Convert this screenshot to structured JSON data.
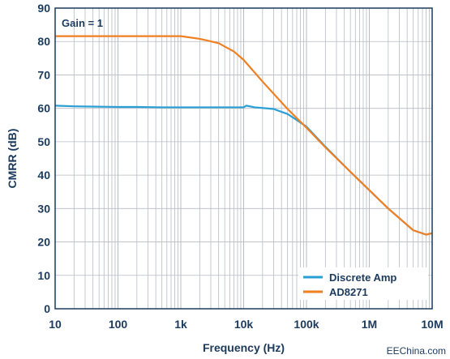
{
  "chart_data": {
    "type": "line",
    "xscale": "log",
    "xlabel": "Frequency (Hz)",
    "ylabel": "CMRR (dB)",
    "xlim": [
      10,
      10000000
    ],
    "ylim": [
      0,
      90
    ],
    "yticks": [
      0,
      10,
      20,
      30,
      40,
      50,
      60,
      70,
      80,
      90
    ],
    "xticks": [
      {
        "value": 10,
        "label": "10"
      },
      {
        "value": 100,
        "label": "100"
      },
      {
        "value": 1000,
        "label": "1k"
      },
      {
        "value": 10000,
        "label": "10k"
      },
      {
        "value": 100000,
        "label": "100k"
      },
      {
        "value": 1000000,
        "label": "1M"
      },
      {
        "value": 10000000,
        "label": "10M"
      }
    ],
    "grid": true,
    "legend_position": "bottom-right",
    "annotation": "Gain = 1",
    "series": [
      {
        "name": "Discrete Amp",
        "color": "#2a9fd6",
        "x": [
          10,
          20,
          50,
          100,
          200,
          500,
          1000,
          2000,
          5000,
          10000,
          11000,
          15000,
          20000,
          30000,
          50000,
          70000,
          100000,
          200000,
          500000,
          1000000,
          2000000,
          5000000,
          8000000,
          10000000
        ],
        "y": [
          60.8,
          60.6,
          60.5,
          60.4,
          60.4,
          60.3,
          60.3,
          60.3,
          60.3,
          60.3,
          60.8,
          60.3,
          60.1,
          59.8,
          58.3,
          56.5,
          54.5,
          48.5,
          41,
          35.5,
          30,
          23.5,
          22.2,
          22.6
        ]
      },
      {
        "name": "AD8271",
        "color": "#f07f22",
        "x": [
          10,
          100,
          1000,
          2000,
          4000,
          7000,
          10000,
          20000,
          50000,
          100000,
          200000,
          500000,
          1000000,
          2000000,
          5000000,
          8000000,
          10000000
        ],
        "y": [
          81.6,
          81.6,
          81.6,
          80.8,
          79.5,
          77,
          74.5,
          68,
          59.8,
          54.2,
          48.3,
          41,
          35.5,
          30,
          23.5,
          22.2,
          22.6
        ]
      }
    ]
  },
  "watermark": "EEChina.com"
}
